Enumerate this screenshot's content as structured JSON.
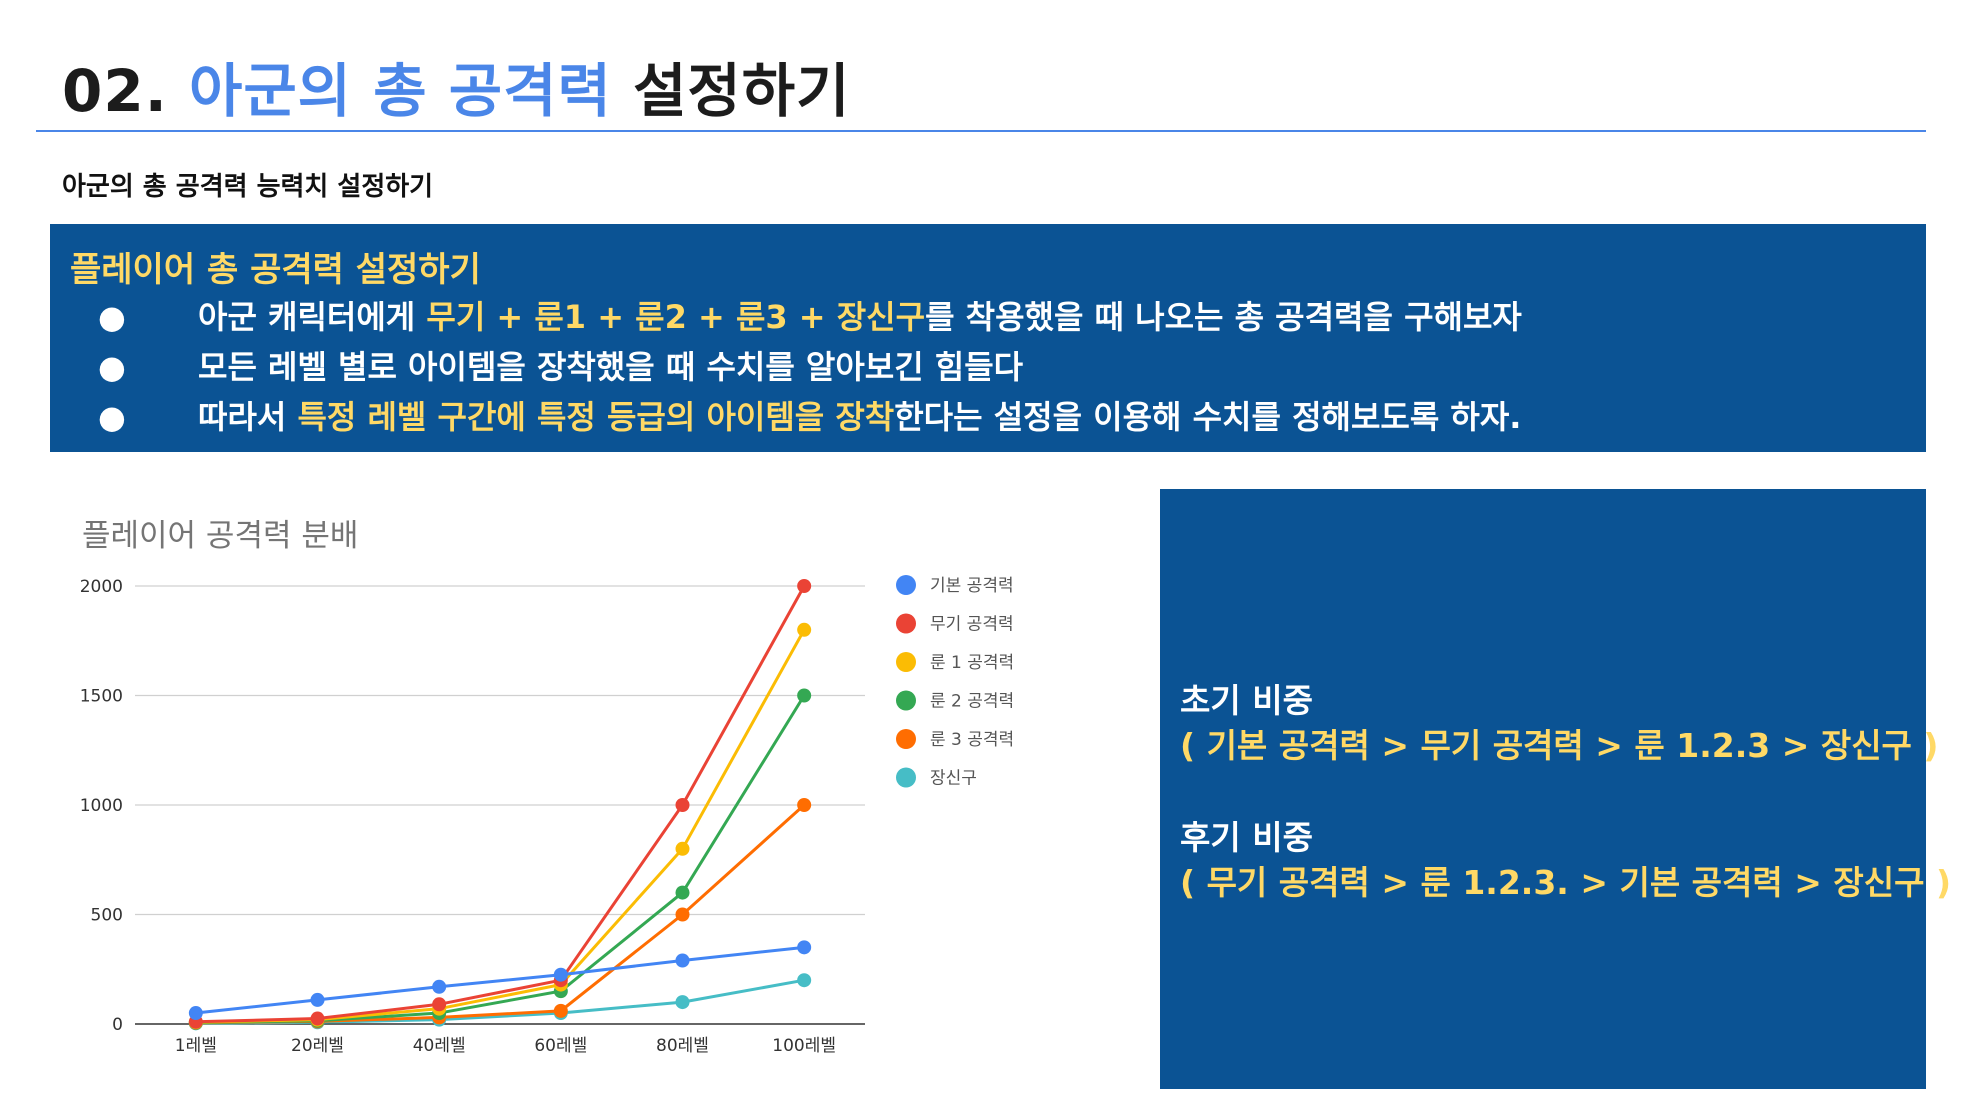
{
  "slide": {
    "title_number": "02.",
    "title_accent": "아군의 총 공격력",
    "title_rest": "설정하기",
    "subtitle": "아군의 총 공격력 능력치 설정하기"
  },
  "top_panel": {
    "heading": "플레이어 총 공격력 설정하기",
    "bullet_symbol": "●",
    "bullet1": {
      "a": "아군 캐릭터에게 ",
      "b": "무기 + 룬1 + 룬2 + 룬3 + 장신구",
      "c": "를 착용했을 때 나오는 총 공격력을 구해보자"
    },
    "bullet2": {
      "a": "모든 레벨 별로 아이템을 장착했을 때 수치를 알아보긴 힘들다"
    },
    "bullet3": {
      "a": "따라서 ",
      "b": "특정 레벨 구간에 특정 등급의 아이템을 장착",
      "c": "한다는 설정을 이용해 수치를 정해보도록 하자."
    }
  },
  "right_panel": {
    "early_heading": "초기 비중",
    "early_body": "( 기본 공격력 > 무기 공격력 > 룬 1.2.3 > 장신구 )",
    "late_heading": "후기 비중",
    "late_body": "( 무기 공격력 > 룬 1.2.3. > 기본 공격력 > 장신구 )"
  },
  "chart_data": {
    "type": "line",
    "title": "플레이어 공격력 분배",
    "categories": [
      "1레벨",
      "20레벨",
      "40레벨",
      "60레벨",
      "80레벨",
      "100레벨"
    ],
    "ylim": [
      0,
      2000
    ],
    "yticks": [
      "0",
      "500",
      "1000",
      "1500",
      "2000"
    ],
    "grid": true,
    "legend_position": "right",
    "series": [
      {
        "name": "기본 공격력",
        "color": "#4285f4",
        "values": [
          50,
          110,
          170,
          225,
          290,
          350
        ]
      },
      {
        "name": "무기 공격력",
        "color": "#ea4335",
        "values": [
          10,
          25,
          90,
          200,
          1000,
          2000
        ]
      },
      {
        "name": "룬 1 공격력",
        "color": "#fbbc04",
        "values": [
          8,
          20,
          70,
          180,
          800,
          1800
        ]
      },
      {
        "name": "룬 2 공격력",
        "color": "#34a853",
        "values": [
          6,
          15,
          50,
          150,
          600,
          1500
        ]
      },
      {
        "name": "룬 3 공격력",
        "color": "#ff6d01",
        "values": [
          5,
          12,
          30,
          60,
          500,
          1000
        ]
      },
      {
        "name": "장신구",
        "color": "#46bdc6",
        "values": [
          3,
          8,
          20,
          50,
          100,
          200
        ]
      }
    ]
  }
}
